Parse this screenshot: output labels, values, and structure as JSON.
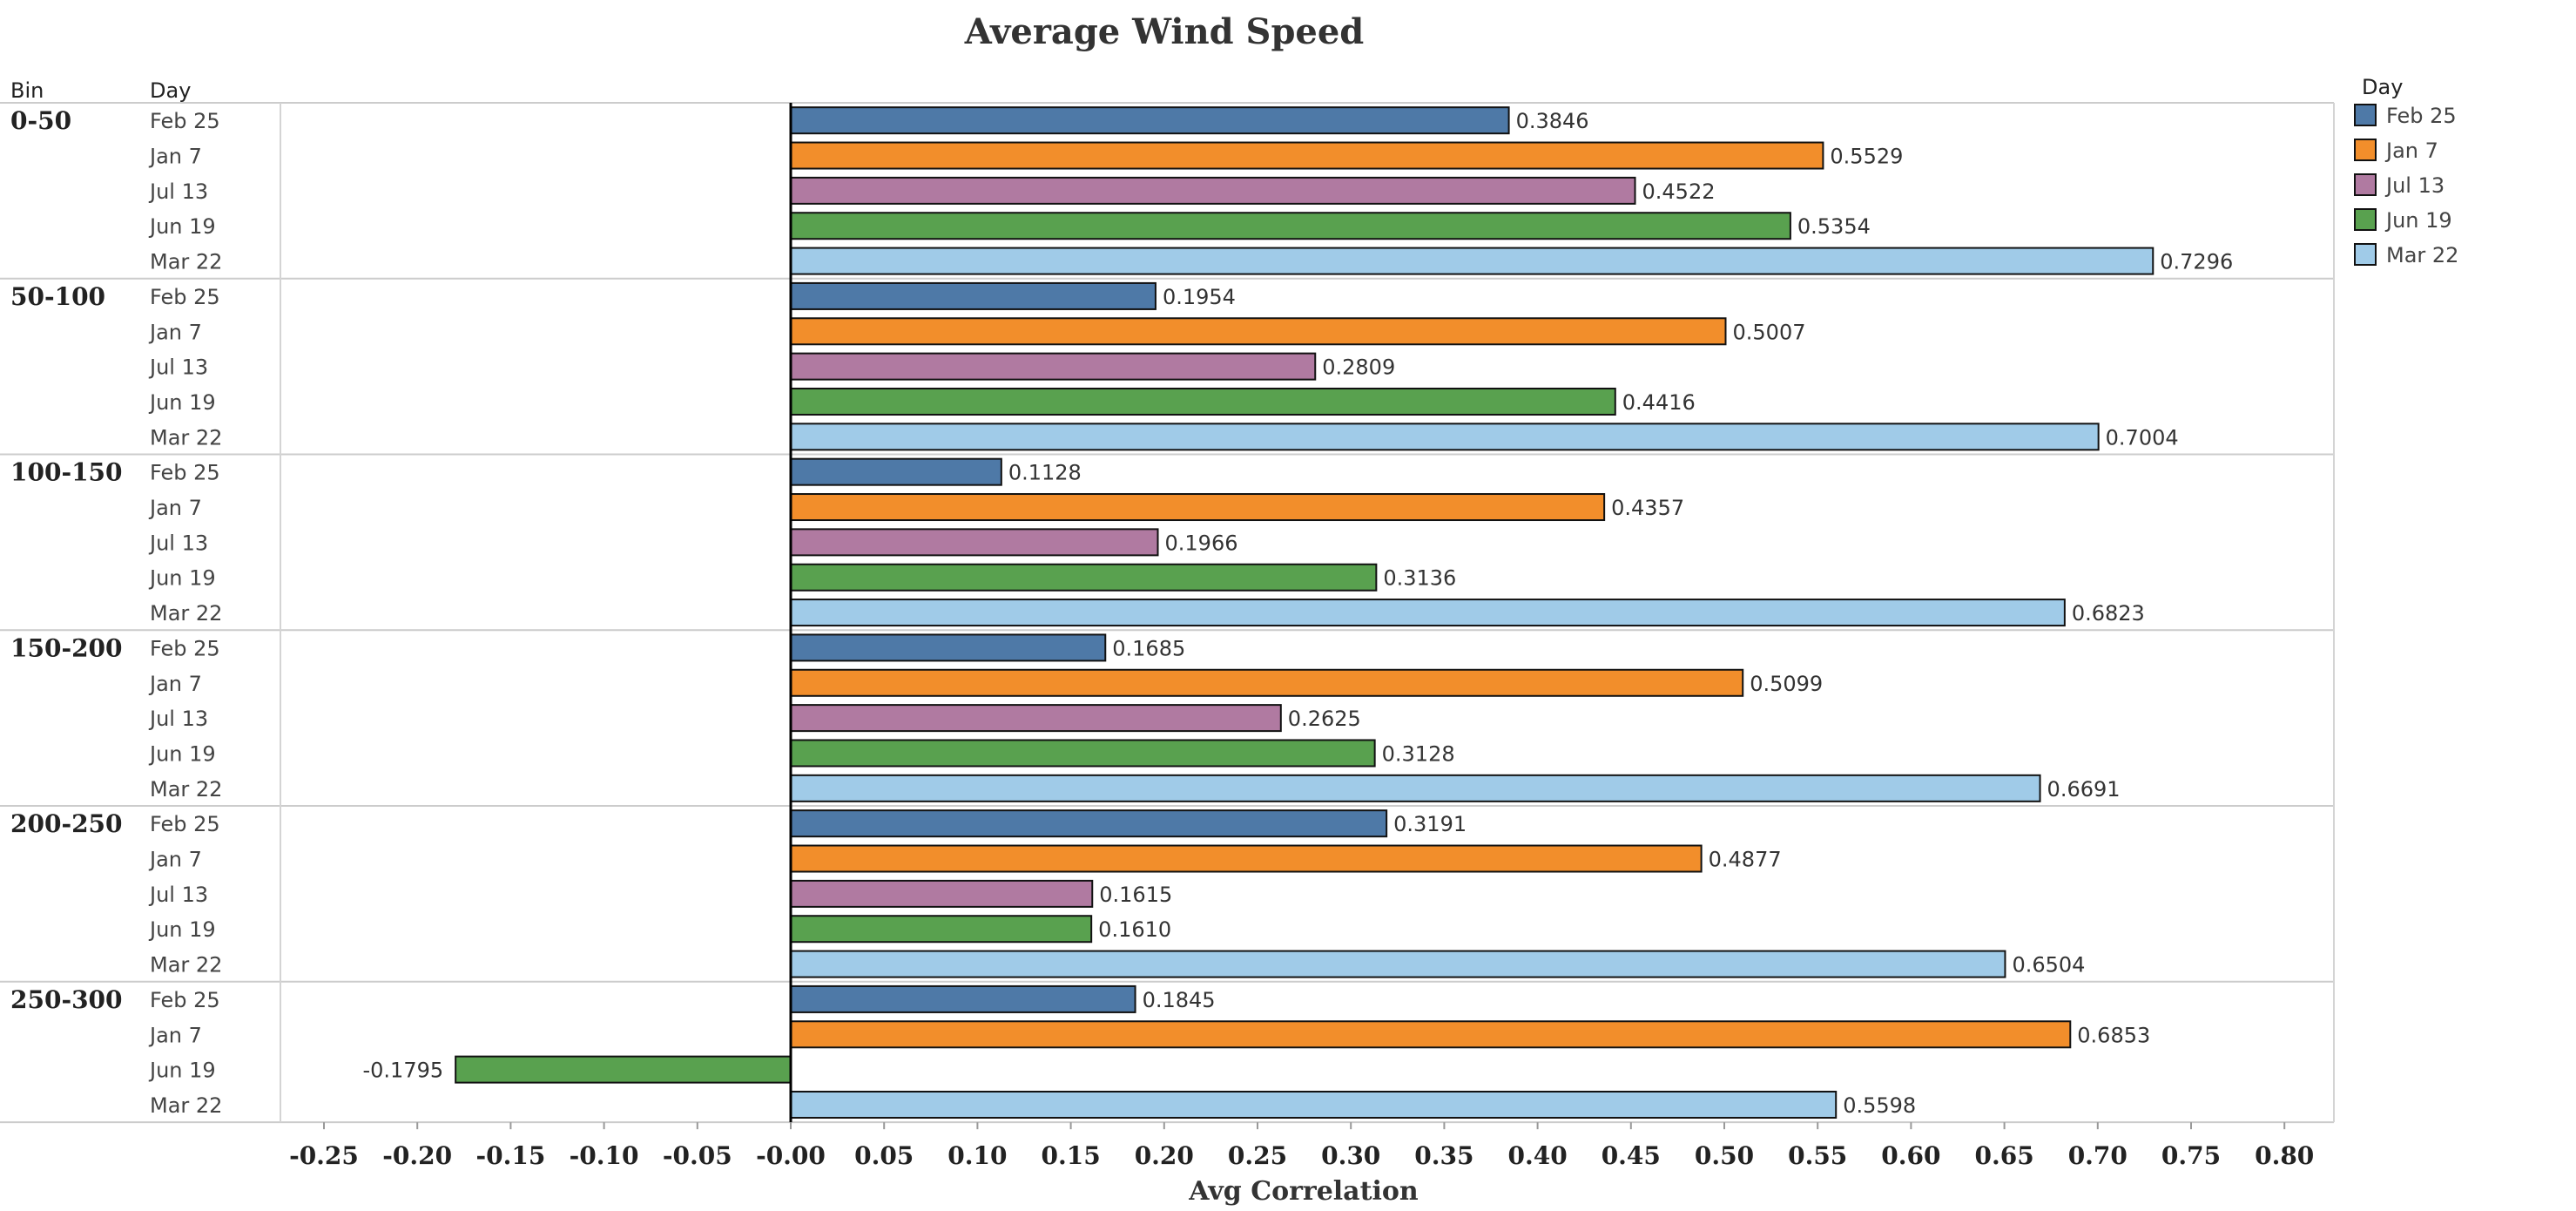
{
  "chart_data": {
    "type": "bar",
    "orientation": "horizontal",
    "title": "Average Wind Speed",
    "xlabel": "Avg Correlation",
    "row_header_bin": "Bin",
    "row_header_day": "Day",
    "legend_title": "Day",
    "legend_position": "top-right",
    "xlim": [
      -0.27,
      0.82
    ],
    "x_ticks": [
      "-0.25",
      "-0.20",
      "-0.15",
      "-0.10",
      "-0.05",
      "-0.00",
      "0.05",
      "0.10",
      "0.15",
      "0.20",
      "0.25",
      "0.30",
      "0.35",
      "0.40",
      "0.45",
      "0.50",
      "0.55",
      "0.60",
      "0.65",
      "0.70",
      "0.75",
      "0.80"
    ],
    "x_tick_values": [
      -0.25,
      -0.2,
      -0.15,
      -0.1,
      -0.05,
      0.0,
      0.05,
      0.1,
      0.15,
      0.2,
      0.25,
      0.3,
      0.35,
      0.4,
      0.45,
      0.5,
      0.55,
      0.6,
      0.65,
      0.7,
      0.75,
      0.8
    ],
    "legend": [
      {
        "name": "Feb 25",
        "color": "#4e79a7"
      },
      {
        "name": "Jan 7",
        "color": "#f28e2b"
      },
      {
        "name": "Jul 13",
        "color": "#b07aa1"
      },
      {
        "name": "Jun 19",
        "color": "#59a14f"
      },
      {
        "name": "Mar 22",
        "color": "#a0cbe8"
      }
    ],
    "groups": [
      {
        "bin": "0-50",
        "rows": [
          {
            "day": "Feb 25",
            "value": 0.3846,
            "label": "0.3846"
          },
          {
            "day": "Jan 7",
            "value": 0.5529,
            "label": "0.5529"
          },
          {
            "day": "Jul 13",
            "value": 0.4522,
            "label": "0.4522"
          },
          {
            "day": "Jun 19",
            "value": 0.5354,
            "label": "0.5354"
          },
          {
            "day": "Mar 22",
            "value": 0.7296,
            "label": "0.7296"
          }
        ]
      },
      {
        "bin": "50-100",
        "rows": [
          {
            "day": "Feb 25",
            "value": 0.1954,
            "label": "0.1954"
          },
          {
            "day": "Jan 7",
            "value": 0.5007,
            "label": "0.5007"
          },
          {
            "day": "Jul 13",
            "value": 0.2809,
            "label": "0.2809"
          },
          {
            "day": "Jun 19",
            "value": 0.4416,
            "label": "0.4416"
          },
          {
            "day": "Mar 22",
            "value": 0.7004,
            "label": "0.7004"
          }
        ]
      },
      {
        "bin": "100-150",
        "rows": [
          {
            "day": "Feb 25",
            "value": 0.1128,
            "label": "0.1128"
          },
          {
            "day": "Jan 7",
            "value": 0.4357,
            "label": "0.4357"
          },
          {
            "day": "Jul 13",
            "value": 0.1966,
            "label": "0.1966"
          },
          {
            "day": "Jun 19",
            "value": 0.3136,
            "label": "0.3136"
          },
          {
            "day": "Mar 22",
            "value": 0.6823,
            "label": "0.6823"
          }
        ]
      },
      {
        "bin": "150-200",
        "rows": [
          {
            "day": "Feb 25",
            "value": 0.1685,
            "label": "0.1685"
          },
          {
            "day": "Jan 7",
            "value": 0.5099,
            "label": "0.5099"
          },
          {
            "day": "Jul 13",
            "value": 0.2625,
            "label": "0.2625"
          },
          {
            "day": "Jun 19",
            "value": 0.3128,
            "label": "0.3128"
          },
          {
            "day": "Mar 22",
            "value": 0.6691,
            "label": "0.6691"
          }
        ]
      },
      {
        "bin": "200-250",
        "rows": [
          {
            "day": "Feb 25",
            "value": 0.3191,
            "label": "0.3191"
          },
          {
            "day": "Jan 7",
            "value": 0.4877,
            "label": "0.4877"
          },
          {
            "day": "Jul 13",
            "value": 0.1615,
            "label": "0.1615"
          },
          {
            "day": "Jun 19",
            "value": 0.161,
            "label": "0.1610"
          },
          {
            "day": "Mar 22",
            "value": 0.6504,
            "label": "0.6504"
          }
        ]
      },
      {
        "bin": "250-300",
        "rows": [
          {
            "day": "Feb 25",
            "value": 0.1845,
            "label": "0.1845"
          },
          {
            "day": "Jan 7",
            "value": 0.6853,
            "label": "0.6853"
          },
          {
            "day": "Jun 19",
            "value": -0.1795,
            "label": "-0.1795"
          },
          {
            "day": "Mar 22",
            "value": 0.5598,
            "label": "0.5598"
          }
        ]
      }
    ],
    "grid": false,
    "zero_line": true
  }
}
